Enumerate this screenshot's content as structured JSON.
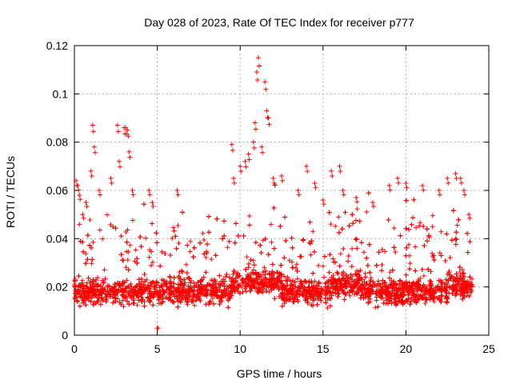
{
  "chart_data": {
    "type": "scatter",
    "title": "Day 028 of 2023, Rate Of TEC Index for receiver p777",
    "xlabel": "GPS time / hours",
    "ylabel": "ROTI / TECUs",
    "xlim": [
      0,
      25
    ],
    "ylim": [
      0,
      0.12
    ],
    "x_ticks": [
      0,
      5,
      10,
      15,
      20,
      25
    ],
    "x_tick_labels": [
      "0",
      "5",
      "10",
      "15",
      "20",
      "25"
    ],
    "y_ticks": [
      0,
      0.02,
      0.04,
      0.06,
      0.08,
      0.1,
      0.12
    ],
    "y_tick_labels": [
      "0",
      "0.02",
      "0.04",
      "0.06",
      "0.08",
      "0.1",
      "0.12"
    ],
    "grid": true,
    "marker": "+",
    "marker_color": "#ff0000",
    "series": [
      {
        "name": "ROTI",
        "note": "dense cloud of points sampled every few seconds from 0 to 24 h; bulk 0.008-0.035, frequent spikes above 0.05",
        "x": [
          0.1,
          0.2,
          0.3,
          0.5,
          0.7,
          1.0,
          1.1,
          1.2,
          1.5,
          2.2,
          2.6,
          2.7,
          3.0,
          3.1,
          3.2,
          3.3,
          3.5,
          4.5,
          4.7,
          5.0,
          6.2,
          9.5,
          9.6,
          10.0,
          10.3,
          10.5,
          10.8,
          10.9,
          11.0,
          11.1,
          11.3,
          11.5,
          11.6,
          11.7,
          12.0,
          12.5,
          13.5,
          14.0,
          14.5,
          15.0,
          15.5,
          16.0,
          16.2,
          17.0,
          18.0,
          19.0,
          19.5,
          20.0,
          21.0,
          22.0,
          22.5,
          23.0,
          23.3,
          23.5,
          23.8
        ],
        "y": [
          0.064,
          0.062,
          0.058,
          0.05,
          0.055,
          0.068,
          0.087,
          0.078,
          0.06,
          0.065,
          0.087,
          0.072,
          0.086,
          0.086,
          0.085,
          0.076,
          0.06,
          0.06,
          0.055,
          0.003,
          0.06,
          0.079,
          0.065,
          0.07,
          0.072,
          0.075,
          0.08,
          0.088,
          0.109,
          0.115,
          0.078,
          0.105,
          0.093,
          0.09,
          0.065,
          0.066,
          0.06,
          0.07,
          0.063,
          0.056,
          0.068,
          0.07,
          0.06,
          0.057,
          0.055,
          0.062,
          0.065,
          0.063,
          0.062,
          0.06,
          0.065,
          0.067,
          0.065,
          0.06,
          0.05
        ]
      }
    ]
  }
}
